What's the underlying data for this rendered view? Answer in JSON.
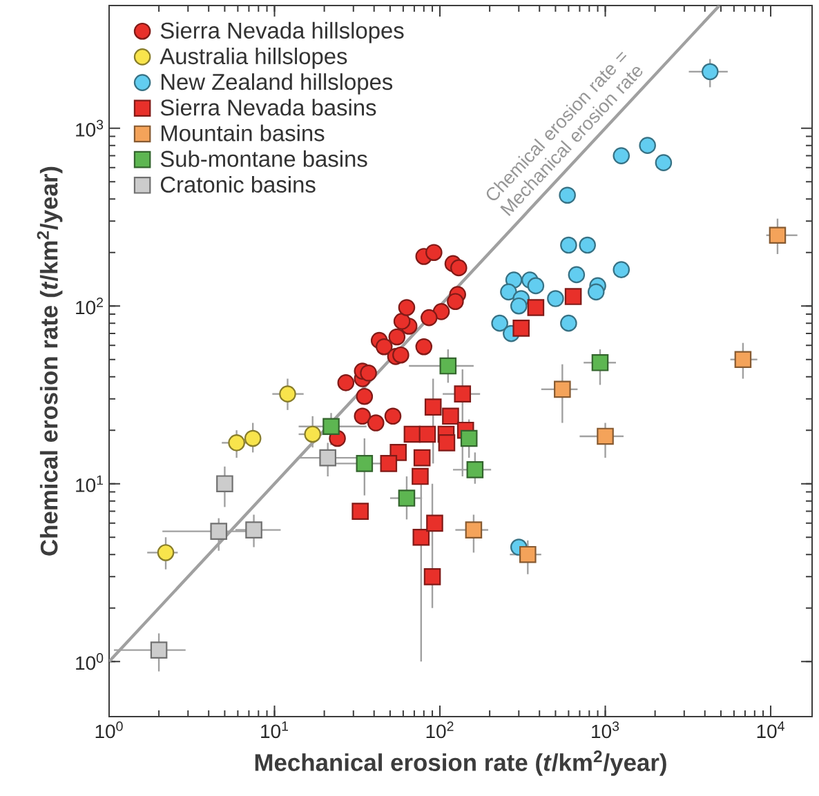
{
  "chart_data": {
    "type": "scatter",
    "xlabel": "Mechanical erosion rate (*t*/km$^{2}$/year)",
    "ylabel": "Chemical erosion rate (*t*/km$^{2}$/year)",
    "log": "xy",
    "grid": false,
    "legend": "top left",
    "xlim": [
      1,
      17800
    ],
    "ylim": [
      0.49,
      4900
    ],
    "xticks": [
      {
        "value": 1,
        "label": "10$^{0}$"
      },
      {
        "value": 10,
        "label": "10$^{1}$"
      },
      {
        "value": 100,
        "label": "10$^{2}$"
      },
      {
        "value": 1000,
        "label": "10$^{3}$"
      },
      {
        "value": 10000,
        "label": "10$^{4}$"
      }
    ],
    "yticks": [
      {
        "value": 1,
        "label": "10$^{0}$"
      },
      {
        "value": 10,
        "label": "10$^{1}$"
      },
      {
        "value": 100,
        "label": "10$^{2}$"
      },
      {
        "value": 1000,
        "label": "10$^{3}$"
      }
    ],
    "annotations": [
      "Chemical erosion rate = Mechanical erosion rate"
    ],
    "series": [
      {
        "type": "line",
        "color": "#a0a0a0",
        "marker": "none",
        "x": [
          1,
          4900
        ],
        "values": [
          1,
          4900
        ]
      },
      {
        "name": "Sierra Nevada hillslopes",
        "color": "#e8302a",
        "marker": "circle",
        "x": [
          80,
          92,
          120,
          130,
          128,
          124,
          102,
          86,
          65,
          59,
          63,
          43,
          46,
          55,
          54,
          58,
          80,
          27,
          34,
          34,
          37,
          35,
          34,
          41,
          52,
          24
        ],
        "values": [
          190,
          200,
          173,
          164,
          116,
          106,
          93,
          86,
          77,
          82,
          98,
          64,
          59,
          67,
          52,
          53,
          59,
          37,
          39,
          43,
          42,
          31,
          24,
          22,
          24,
          18
        ]
      },
      {
        "name": "Australia hillslopes",
        "color": "#f8e44c",
        "marker": "circle",
        "x": [
          2.2,
          5.9,
          7.4,
          12,
          17
        ],
        "values": [
          4.1,
          17,
          18,
          32,
          19
        ],
        "errors": [
          [
            3.3,
            5
          ],
          [
            14,
            20
          ],
          [
            15,
            22
          ],
          [
            26,
            39
          ],
          [
            16,
            24
          ]
        ],
        "xerrors": [
          [
            1.7,
            2.6
          ],
          [
            4.8,
            7.3
          ],
          null,
          [
            9.7,
            15
          ],
          [
            14,
            22
          ]
        ]
      },
      {
        "name": "New Zealand hillslopes",
        "color": "#62cdf0",
        "marker": "circle",
        "x": [
          4300,
          1250,
          1800,
          2250,
          590,
          600,
          780,
          1250,
          670,
          900,
          880,
          280,
          350,
          380,
          260,
          310,
          300,
          500,
          230,
          270,
          600,
          300
        ],
        "values": [
          2080,
          700,
          800,
          640,
          420,
          220,
          220,
          160,
          150,
          130,
          120,
          140,
          140,
          130,
          120,
          110,
          100,
          110,
          80,
          70,
          80,
          4.4
        ],
        "errors": [
          [
            1700,
            2450
          ],
          null,
          null,
          null,
          null,
          null,
          null,
          null,
          null,
          null,
          null,
          null,
          null,
          null,
          null,
          null,
          null,
          null,
          null,
          null,
          null,
          null
        ],
        "xerrors": [
          [
            3200,
            5500
          ],
          null,
          null,
          null,
          null,
          null,
          null,
          null,
          null,
          null,
          null,
          null,
          null,
          null,
          null,
          null,
          null,
          null,
          null,
          null,
          null,
          null
        ]
      },
      {
        "name": "Sierra Nevada basins",
        "color": "#e8302a",
        "marker": "square",
        "x": [
          640,
          380,
          310,
          91,
          137,
          116,
          143,
          109,
          110,
          68,
          84,
          56,
          49,
          78,
          76,
          77,
          93,
          33,
          90
        ],
        "values": [
          113,
          98,
          75,
          27,
          32,
          24,
          20,
          19,
          17,
          19,
          19,
          15,
          13,
          14,
          11,
          5,
          6,
          7,
          3
        ],
        "errors": [
          null,
          null,
          null,
          [
            13,
            39
          ],
          [
            11,
            44
          ],
          null,
          null,
          null,
          null,
          null,
          null,
          null,
          null,
          null,
          null,
          [
            1,
            10
          ],
          null,
          null,
          [
            2,
            10
          ]
        ],
        "xerrors": [
          null,
          null,
          null,
          null,
          [
            104,
            175
          ],
          null,
          null,
          null,
          null,
          null,
          null,
          null,
          null,
          null,
          null,
          null,
          null,
          null,
          null
        ]
      },
      {
        "name": "Mountain basins",
        "color": "#f4a35a",
        "marker": "square",
        "x": [
          11000,
          6800,
          550,
          1000,
          160,
          340
        ],
        "values": [
          250,
          50,
          34,
          18.5,
          5.5,
          4
        ],
        "errors": [
          [
            196,
            310
          ],
          [
            39,
            62
          ],
          [
            22,
            47
          ],
          [
            14,
            22
          ],
          [
            4.1,
            6.7
          ],
          [
            3.1,
            4.8
          ]
        ],
        "xerrors": [
          [
            9400,
            14500
          ],
          [
            5700,
            8300
          ],
          [
            410,
            680
          ],
          [
            700,
            1290
          ],
          [
            124,
            196
          ],
          [
            265,
            410
          ]
        ]
      },
      {
        "name": "Sub-montane basins",
        "color": "#5db651",
        "marker": "square",
        "x": [
          112,
          930,
          22,
          150,
          35,
          163,
          63
        ],
        "values": [
          46,
          48,
          21,
          18,
          13,
          12,
          8.3
        ],
        "errors": [
          [
            37,
            57
          ],
          [
            36,
            57
          ],
          [
            16.5,
            25
          ],
          [
            14,
            23
          ],
          [
            8.6,
            18
          ],
          [
            10,
            15
          ],
          [
            6.3,
            11
          ]
        ],
        "xerrors": [
          [
            65,
            160
          ],
          [
            740,
            1160
          ],
          [
            14,
            36
          ],
          null,
          [
            22,
            44
          ],
          [
            120,
            204
          ],
          [
            50,
            78
          ]
        ]
      },
      {
        "name": "Cratonic basins",
        "color": "#cccccc",
        "marker": "square",
        "x": [
          2.0,
          4.6,
          7.5,
          5,
          21
        ],
        "values": [
          1.16,
          5.4,
          5.5,
          10,
          14
        ],
        "errors": [
          [
            0.88,
            1.44
          ],
          [
            4.2,
            6.4
          ],
          [
            4.4,
            6.7
          ],
          [
            7.4,
            12.5
          ],
          [
            11,
            17
          ]
        ],
        "xerrors": [
          [
            1.07,
            2.9
          ],
          [
            2.1,
            6.8
          ],
          [
            5.8,
            10.9
          ],
          null,
          [
            13.7,
            36
          ]
        ]
      }
    ]
  }
}
